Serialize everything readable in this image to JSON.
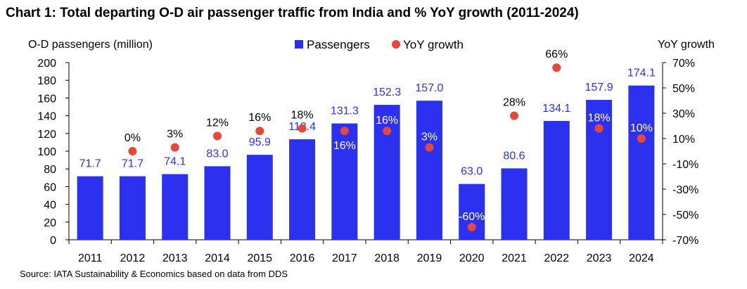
{
  "title": "Chart 1: Total departing O-D air passenger traffic from India and % YoY growth (2011-2024)",
  "source": "Source: IATA Sustainability & Economics based on data from DDS",
  "colors": {
    "bar": "#2b31ee",
    "dot": "#e8473c",
    "bar_label_outside": "#2b31ee",
    "label_inside": "#ffffff"
  },
  "chart_data": {
    "type": "bar",
    "title": "Chart 1: Total departing O-D air passenger traffic from India and % YoY growth (2011-2024)",
    "categories": [
      "2011",
      "2012",
      "2013",
      "2014",
      "2015",
      "2016",
      "2017",
      "2018",
      "2019",
      "2020",
      "2021",
      "2022",
      "2023",
      "2024"
    ],
    "series": [
      {
        "name": "Passengers",
        "type": "bar",
        "axis": "left",
        "values": [
          71.7,
          71.7,
          74.1,
          83.0,
          95.9,
          113.4,
          131.3,
          152.3,
          157.0,
          63.0,
          80.6,
          134.1,
          157.9,
          174.1
        ],
        "labels": [
          "71.7",
          "71.7",
          "74.1",
          "83.0",
          "95.9",
          "113.4",
          "131.3",
          "152.3",
          "157.0",
          "63.0",
          "80.6",
          "134.1",
          "157.9",
          "174.1"
        ]
      },
      {
        "name": "YoY growth",
        "type": "scatter",
        "axis": "right",
        "values": [
          null,
          0,
          3,
          12,
          16,
          18,
          16,
          16,
          3,
          -60,
          28,
          66,
          18,
          10
        ],
        "labels": [
          "",
          "0%",
          "3%",
          "12%",
          "16%",
          "18%",
          "16%",
          "16%",
          "3%",
          "-60%",
          "28%",
          "66%",
          "18%",
          "10%"
        ]
      }
    ],
    "ylabel": "O-D passengers (million)",
    "y2label": "YoY growth",
    "ylim": [
      0,
      200
    ],
    "y2lim": [
      -70,
      70
    ],
    "yticks": [
      "0",
      "20",
      "40",
      "60",
      "80",
      "100",
      "120",
      "140",
      "160",
      "180",
      "200"
    ],
    "y2ticks": [
      "-70%",
      "-50%",
      "-30%",
      "-10%",
      "10%",
      "30%",
      "50%",
      "70%"
    ],
    "legend": [
      {
        "name": "Passengers",
        "marker": "square"
      },
      {
        "name": "YoY growth",
        "marker": "circle"
      }
    ],
    "legend_position": "top-center",
    "grid": false
  }
}
